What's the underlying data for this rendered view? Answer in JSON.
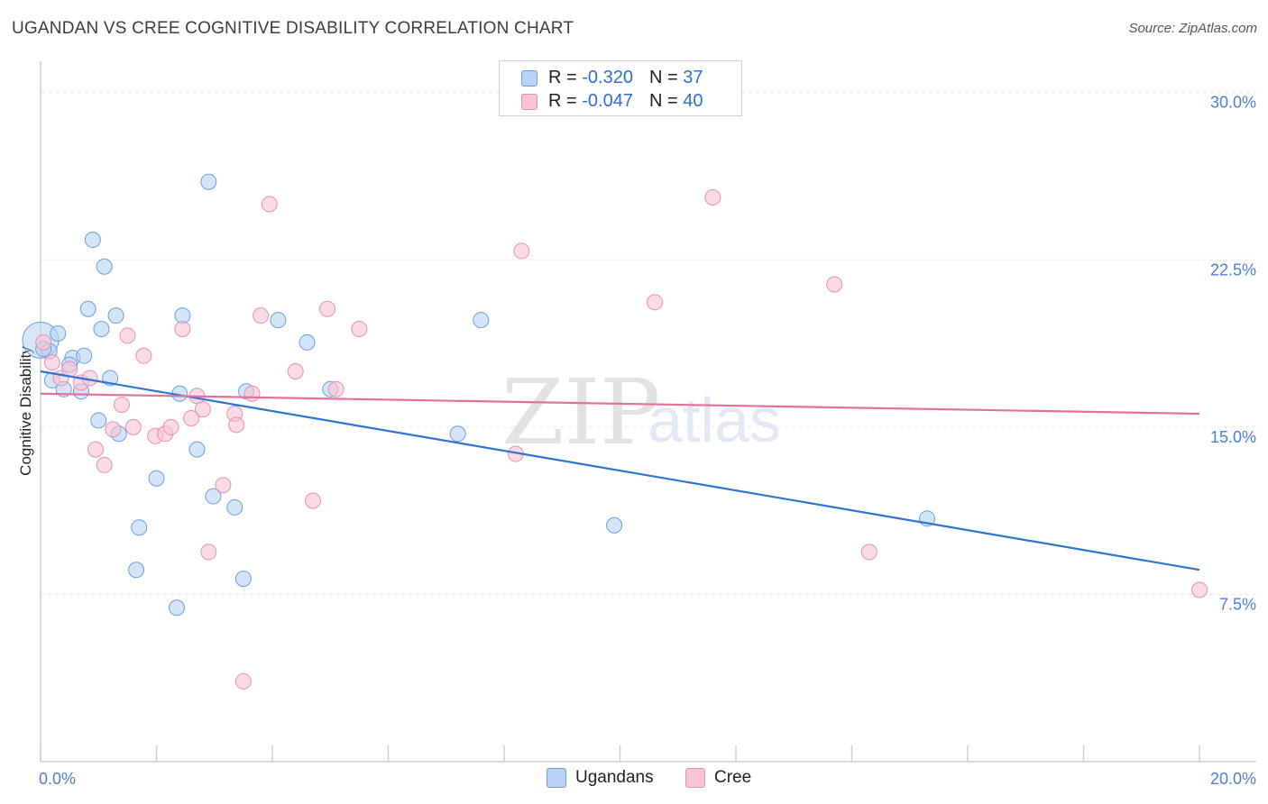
{
  "title": "UGANDAN VS CREE COGNITIVE DISABILITY CORRELATION CHART",
  "source": "Source: ZipAtlas.com",
  "watermark": {
    "zip": "ZIP",
    "atlas": "atlas"
  },
  "legend": {
    "rows": [
      {
        "r_label": "R = ",
        "r_value": "-0.320",
        "n_label": "N = ",
        "n_value": "37"
      },
      {
        "r_label": "R = ",
        "r_value": "-0.047",
        "n_label": "N = ",
        "n_value": "40"
      }
    ]
  },
  "bottom_legend": {
    "ugandans": "Ugandans",
    "cree": "Cree"
  },
  "colors": {
    "ugandan_fill": "#b8d3f3",
    "ugandan_stroke": "#6a9de0",
    "ugandan_line": "#2f73d6",
    "cree_fill": "#f8c3d4",
    "cree_stroke": "#e98fae",
    "cree_line": "#e4709a",
    "grid": "#e6e6e6",
    "axis_text": "#4a7fd1"
  },
  "chart_data": {
    "type": "scatter",
    "title": "UGANDAN VS CREE COGNITIVE DISABILITY CORRELATION CHART",
    "xlabel": "",
    "ylabel": "Cognitive Disability",
    "xlim": [
      0.0,
      20.0
    ],
    "ylim": [
      0.0,
      31.0
    ],
    "x_tick_labels": [
      "0.0%",
      "20.0%"
    ],
    "y_ticks": [
      7.5,
      15.0,
      22.5,
      30.0
    ],
    "y_tick_labels": [
      "7.5%",
      "15.0%",
      "22.5%",
      "30.0%"
    ],
    "series": [
      {
        "name": "Ugandans",
        "r": -0.32,
        "n": 37,
        "trend": {
          "x": [
            0.0,
            20.0
          ],
          "y": [
            17.5,
            8.6
          ]
        },
        "points": [
          {
            "x": 0.0,
            "y": 18.9,
            "big": true
          },
          {
            "x": 0.3,
            "y": 19.2
          },
          {
            "x": 0.15,
            "y": 18.4
          },
          {
            "x": 0.55,
            "y": 18.1
          },
          {
            "x": 0.75,
            "y": 18.2
          },
          {
            "x": 0.5,
            "y": 17.8
          },
          {
            "x": 0.2,
            "y": 17.1
          },
          {
            "x": 0.4,
            "y": 16.7
          },
          {
            "x": 0.7,
            "y": 16.6
          },
          {
            "x": 1.2,
            "y": 17.2
          },
          {
            "x": 0.9,
            "y": 23.4
          },
          {
            "x": 1.1,
            "y": 22.2
          },
          {
            "x": 0.82,
            "y": 20.3
          },
          {
            "x": 1.05,
            "y": 19.4
          },
          {
            "x": 1.3,
            "y": 20.0
          },
          {
            "x": 1.0,
            "y": 15.3
          },
          {
            "x": 1.35,
            "y": 14.7
          },
          {
            "x": 1.7,
            "y": 10.5
          },
          {
            "x": 1.65,
            "y": 8.6
          },
          {
            "x": 2.0,
            "y": 12.7
          },
          {
            "x": 2.4,
            "y": 16.5
          },
          {
            "x": 2.45,
            "y": 20.0
          },
          {
            "x": 2.7,
            "y": 14.0
          },
          {
            "x": 2.9,
            "y": 26.0
          },
          {
            "x": 2.98,
            "y": 11.9
          },
          {
            "x": 2.35,
            "y": 6.9
          },
          {
            "x": 3.35,
            "y": 11.4
          },
          {
            "x": 3.5,
            "y": 8.2
          },
          {
            "x": 3.55,
            "y": 16.6
          },
          {
            "x": 4.1,
            "y": 19.8
          },
          {
            "x": 4.6,
            "y": 18.8
          },
          {
            "x": 5.0,
            "y": 16.7
          },
          {
            "x": 7.2,
            "y": 14.7
          },
          {
            "x": 7.6,
            "y": 19.8
          },
          {
            "x": 9.9,
            "y": 10.6
          },
          {
            "x": 15.3,
            "y": 10.9
          },
          {
            "x": 0.05,
            "y": 18.5
          }
        ]
      },
      {
        "name": "Cree",
        "r": -0.047,
        "n": 40,
        "trend": {
          "x": [
            0.0,
            20.0
          ],
          "y": [
            16.5,
            15.6
          ]
        },
        "points": [
          {
            "x": 0.05,
            "y": 18.8
          },
          {
            "x": 0.2,
            "y": 17.9
          },
          {
            "x": 0.35,
            "y": 17.2
          },
          {
            "x": 0.5,
            "y": 17.6
          },
          {
            "x": 0.7,
            "y": 17.0
          },
          {
            "x": 0.85,
            "y": 17.2
          },
          {
            "x": 0.95,
            "y": 14.0
          },
          {
            "x": 1.1,
            "y": 13.3
          },
          {
            "x": 1.25,
            "y": 14.9
          },
          {
            "x": 1.4,
            "y": 16.0
          },
          {
            "x": 1.5,
            "y": 19.1
          },
          {
            "x": 1.6,
            "y": 15.0
          },
          {
            "x": 1.78,
            "y": 18.2
          },
          {
            "x": 1.98,
            "y": 14.6
          },
          {
            "x": 2.15,
            "y": 14.7
          },
          {
            "x": 2.25,
            "y": 15.0
          },
          {
            "x": 2.45,
            "y": 19.4
          },
          {
            "x": 2.6,
            "y": 15.4
          },
          {
            "x": 2.7,
            "y": 16.4
          },
          {
            "x": 2.8,
            "y": 15.8
          },
          {
            "x": 2.9,
            "y": 9.4
          },
          {
            "x": 3.15,
            "y": 12.4
          },
          {
            "x": 3.35,
            "y": 15.6
          },
          {
            "x": 3.38,
            "y": 15.1
          },
          {
            "x": 3.5,
            "y": 3.6
          },
          {
            "x": 3.65,
            "y": 16.5
          },
          {
            "x": 3.8,
            "y": 20.0
          },
          {
            "x": 3.95,
            "y": 25.0
          },
          {
            "x": 4.4,
            "y": 17.5
          },
          {
            "x": 4.7,
            "y": 11.7
          },
          {
            "x": 4.95,
            "y": 20.3
          },
          {
            "x": 5.1,
            "y": 16.7
          },
          {
            "x": 5.5,
            "y": 19.4
          },
          {
            "x": 8.3,
            "y": 22.9
          },
          {
            "x": 8.2,
            "y": 13.8
          },
          {
            "x": 10.6,
            "y": 20.6
          },
          {
            "x": 11.6,
            "y": 25.3
          },
          {
            "x": 13.7,
            "y": 21.4
          },
          {
            "x": 14.3,
            "y": 9.4
          },
          {
            "x": 20.0,
            "y": 7.7
          }
        ]
      }
    ]
  }
}
